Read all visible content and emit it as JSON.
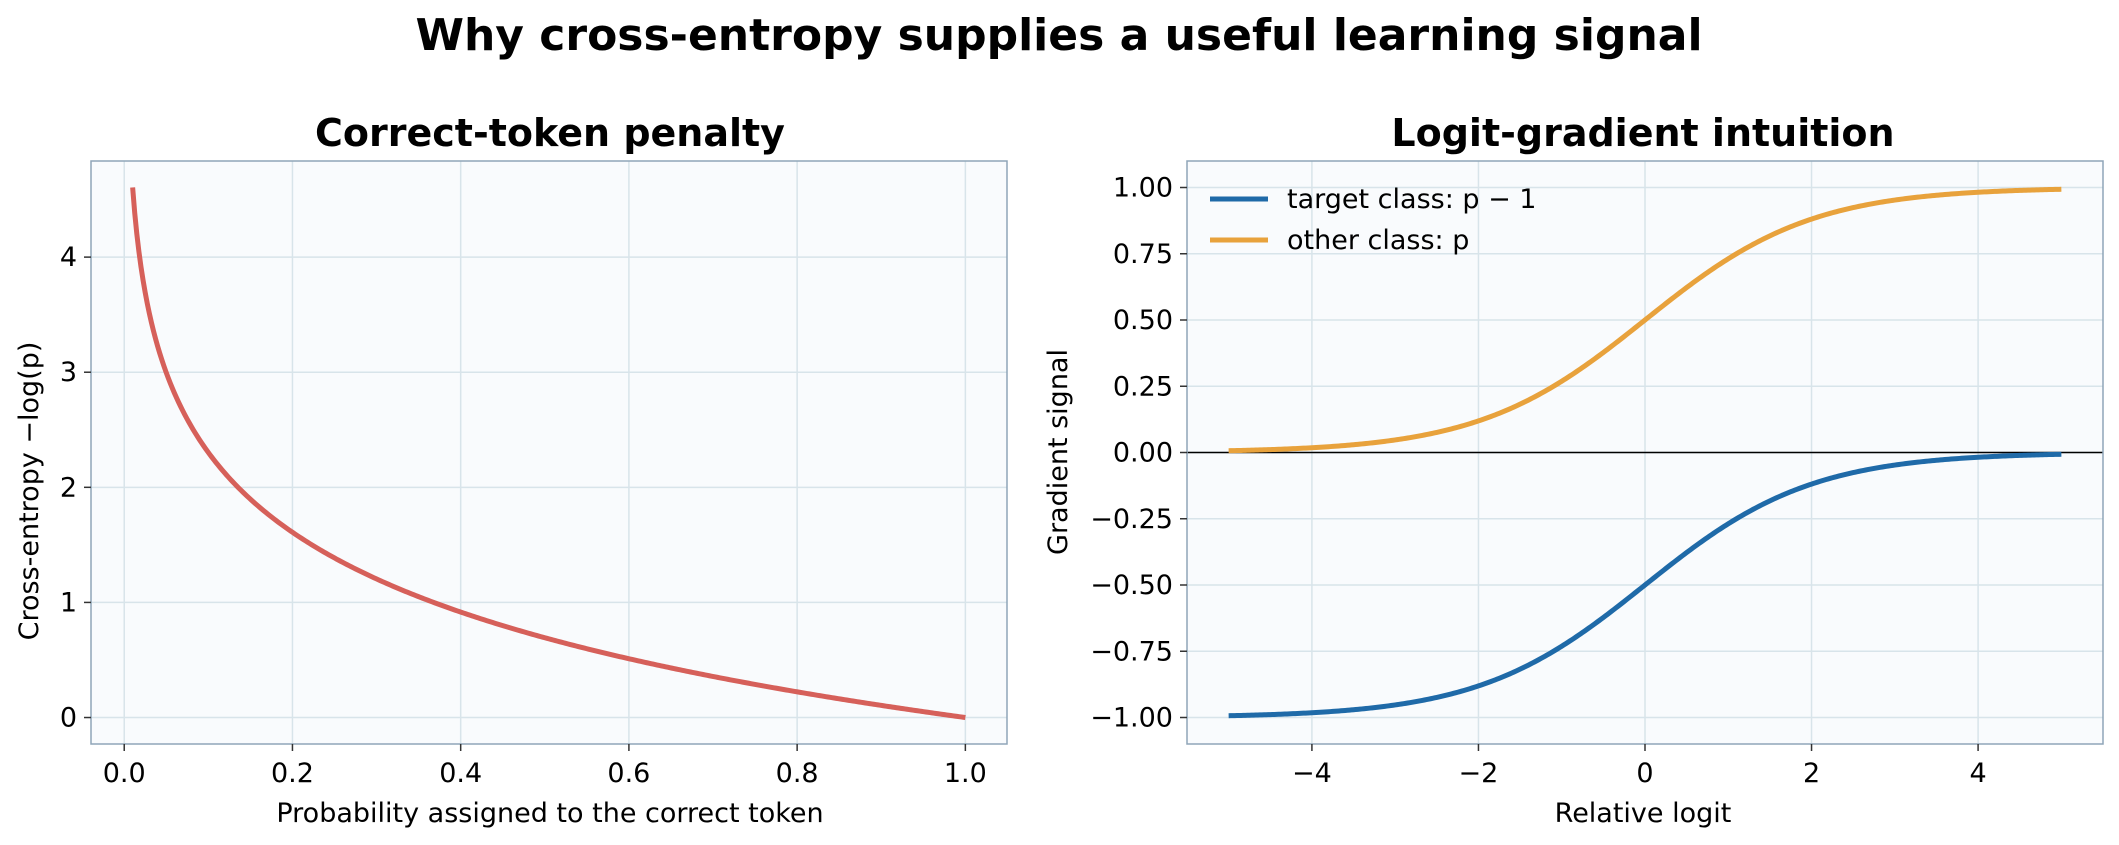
{
  "figure": {
    "title": "Why cross-entropy supplies a useful learning signal"
  },
  "colors": {
    "ce_curve": "#d6605a",
    "target_class": "#1f6aa8",
    "other_class": "#e8a23c",
    "plot_bg": "#f9fbfd",
    "grid": "#d8e4ea",
    "spine": "#8fa5b8",
    "zero_line": "#000000"
  },
  "chart_data": [
    {
      "type": "line",
      "title": "Correct-token penalty",
      "xlabel": "Probability assigned to the correct token",
      "ylabel": "Cross-entropy −log(p)",
      "xlim": [
        -0.0395,
        1.0495
      ],
      "ylim": [
        -0.23,
        4.835
      ],
      "xticks": [
        0.0,
        0.2,
        0.4,
        0.6,
        0.8,
        1.0
      ],
      "xtick_labels": [
        "0.0",
        "0.2",
        "0.4",
        "0.6",
        "0.8",
        "1.0"
      ],
      "yticks": [
        0,
        1,
        2,
        3,
        4
      ],
      "ytick_labels": [
        "0",
        "1",
        "2",
        "3",
        "4"
      ],
      "grid": true,
      "series": [
        {
          "function": "-log(p)",
          "x": [
            0.01,
            0.02,
            0.03,
            0.04,
            0.05,
            0.06,
            0.08,
            0.1,
            0.12,
            0.15,
            0.2,
            0.25,
            0.3,
            0.35,
            0.4,
            0.45,
            0.5,
            0.55,
            0.6,
            0.65,
            0.7,
            0.75,
            0.8,
            0.85,
            0.9,
            0.95,
            1.0
          ],
          "y": [
            4.605,
            3.912,
            3.507,
            3.219,
            2.996,
            2.813,
            2.526,
            2.303,
            2.12,
            1.897,
            1.609,
            1.386,
            1.204,
            1.05,
            0.916,
            0.799,
            0.693,
            0.598,
            0.511,
            0.431,
            0.357,
            0.288,
            0.223,
            0.163,
            0.105,
            0.051,
            0.0
          ]
        }
      ]
    },
    {
      "type": "line",
      "title": "Logit-gradient intuition",
      "xlabel": "Relative logit",
      "ylabel": "Gradient signal",
      "xlim": [
        -5.5,
        5.5
      ],
      "ylim": [
        -1.1,
        1.1
      ],
      "xticks": [
        -4,
        -2,
        0,
        2,
        4
      ],
      "xtick_labels": [
        "−4",
        "−2",
        "0",
        "2",
        "4"
      ],
      "yticks": [
        1.0,
        0.75,
        0.5,
        0.25,
        0.0,
        -0.25,
        -0.5,
        -0.75,
        -1.0
      ],
      "ytick_labels": [
        "1.00",
        "0.75",
        "0.50",
        "0.25",
        "0.00",
        "−0.25",
        "−0.50",
        "−0.75",
        "−1.00"
      ],
      "grid": true,
      "legend_position": "upper-left",
      "zero_line": true,
      "series": [
        {
          "name": "target class: p − 1",
          "function": "sigmoid(x) - 1",
          "x": [
            -5,
            -4.5,
            -4,
            -3.5,
            -3,
            -2.5,
            -2,
            -1.5,
            -1,
            -0.5,
            0,
            0.5,
            1,
            1.5,
            2,
            2.5,
            3,
            3.5,
            4,
            4.5,
            5
          ],
          "y": [
            -0.993,
            -0.989,
            -0.982,
            -0.971,
            -0.953,
            -0.924,
            -0.881,
            -0.818,
            -0.731,
            -0.622,
            -0.5,
            -0.378,
            -0.269,
            -0.182,
            -0.119,
            -0.076,
            -0.047,
            -0.029,
            -0.018,
            -0.011,
            -0.007
          ]
        },
        {
          "name": "other class: p",
          "function": "sigmoid(x)",
          "x": [
            -5,
            -4.5,
            -4,
            -3.5,
            -3,
            -2.5,
            -2,
            -1.5,
            -1,
            -0.5,
            0,
            0.5,
            1,
            1.5,
            2,
            2.5,
            3,
            3.5,
            4,
            4.5,
            5
          ],
          "y": [
            0.007,
            0.011,
            0.018,
            0.029,
            0.047,
            0.076,
            0.119,
            0.182,
            0.269,
            0.378,
            0.5,
            0.622,
            0.731,
            0.818,
            0.881,
            0.924,
            0.953,
            0.971,
            0.982,
            0.989,
            0.993
          ]
        }
      ]
    }
  ]
}
